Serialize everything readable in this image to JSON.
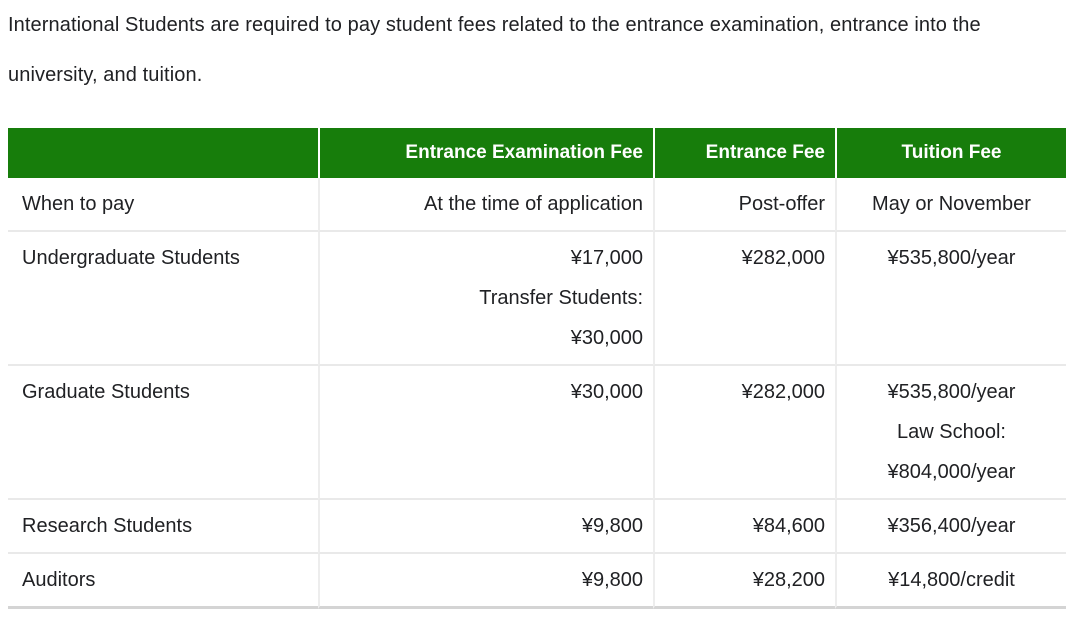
{
  "intro": "International Students are required to pay student fees related to the entrance examination, entrance into the university, and tuition.",
  "table": {
    "colors": {
      "header_bg": "#177d0b",
      "header_text": "#ffffff",
      "body_text": "#202124"
    },
    "columns": [
      {
        "label": ""
      },
      {
        "label": "Entrance Examination Fee"
      },
      {
        "label": "Entrance Fee"
      },
      {
        "label": "Tuition Fee"
      }
    ],
    "rows": [
      {
        "label": "When to pay",
        "cells": [
          [
            "At the time of application"
          ],
          [
            "Post-offer"
          ],
          [
            "May or November"
          ]
        ]
      },
      {
        "label": "Undergraduate Students",
        "cells": [
          [
            "¥17,000",
            "Transfer Students:",
            "¥30,000"
          ],
          [
            "¥282,000"
          ],
          [
            "¥535,800/year"
          ]
        ]
      },
      {
        "label": "Graduate Students",
        "cells": [
          [
            "¥30,000"
          ],
          [
            "¥282,000"
          ],
          [
            "¥535,800/year",
            "Law School:",
            "¥804,000/year"
          ]
        ]
      },
      {
        "label": "Research Students",
        "cells": [
          [
            "¥9,800"
          ],
          [
            "¥84,600"
          ],
          [
            "¥356,400/year"
          ]
        ]
      },
      {
        "label": "Auditors",
        "cells": [
          [
            "¥9,800"
          ],
          [
            "¥28,200"
          ],
          [
            "¥14,800/credit"
          ]
        ]
      }
    ]
  }
}
